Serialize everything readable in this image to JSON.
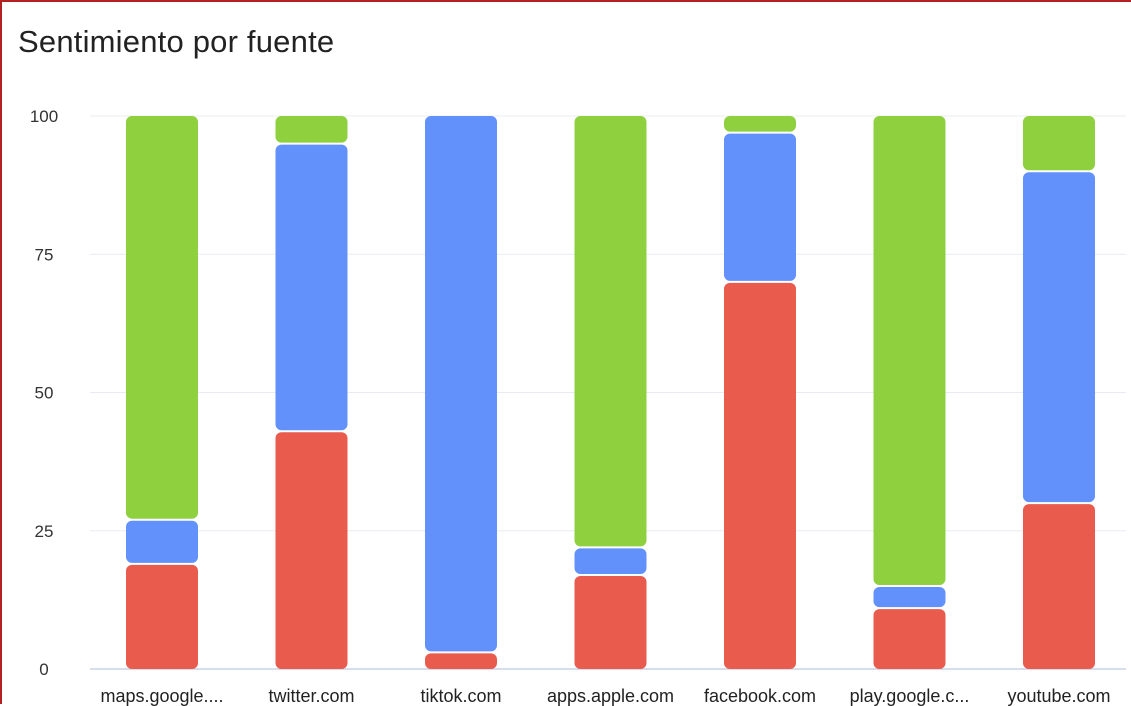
{
  "chart_data": {
    "type": "bar",
    "stacked": true,
    "title": "Sentimiento por fuente",
    "xlabel": "",
    "ylabel": "",
    "ylim": [
      0,
      100
    ],
    "yticks": [
      "0",
      "25",
      "50",
      "75",
      "100"
    ],
    "categories": [
      "maps.google....",
      "twitter.com",
      "tiktok.com",
      "apps.apple.com",
      "facebook.com",
      "play.google.c...",
      "youtube.com"
    ],
    "series": [
      {
        "color": "#e85b4d",
        "values": [
          19,
          43,
          3,
          17,
          70,
          11,
          30
        ]
      },
      {
        "color": "#6291fb",
        "values": [
          8,
          52,
          97,
          5,
          27,
          4,
          60
        ]
      },
      {
        "color": "#8fd03f",
        "values": [
          73,
          5,
          0,
          78,
          3,
          85,
          10
        ]
      }
    ],
    "grid": true,
    "legend": "none"
  }
}
